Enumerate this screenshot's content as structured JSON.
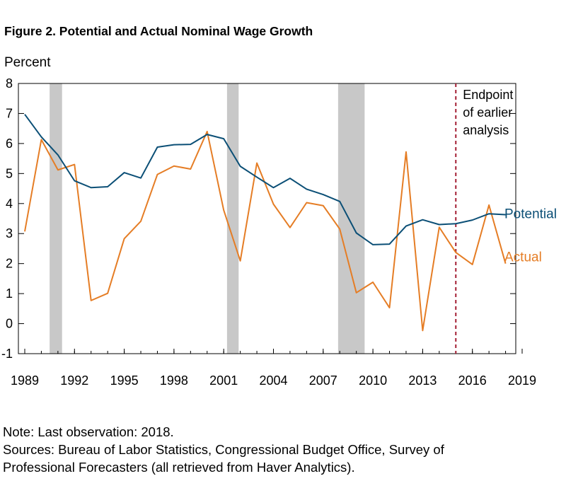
{
  "figure": {
    "title": "Figure 2.  Potential and Actual Nominal Wage Growth",
    "note": "Note: Last observation: 2018.",
    "sources_line1": "Sources: Bureau of Labor Statistics, Congressional Budget Office, Survey of",
    "sources_line2": "Professional Forecasters (all retrieved from Haver Analytics)."
  },
  "chart_data": {
    "type": "line",
    "ylabel": "Percent",
    "xlabel": "",
    "ylim": [
      -1,
      8
    ],
    "xlim": [
      1989,
      2019
    ],
    "yticks": [
      -1,
      0,
      1,
      2,
      3,
      4,
      5,
      6,
      7,
      8
    ],
    "xticks": [
      1989,
      1992,
      1995,
      1998,
      2001,
      2004,
      2007,
      2010,
      2013,
      2016,
      2019
    ],
    "x": [
      1989,
      1990,
      1991,
      1992,
      1993,
      1994,
      1995,
      1996,
      1997,
      1998,
      1999,
      2000,
      2001,
      2002,
      2003,
      2004,
      2005,
      2006,
      2007,
      2008,
      2009,
      2010,
      2011,
      2012,
      2013,
      2014,
      2015,
      2016,
      2017,
      2018
    ],
    "series": [
      {
        "name": "Potential",
        "color": "#0b4f76",
        "values": [
          6.97,
          6.22,
          5.62,
          4.76,
          4.53,
          4.56,
          5.03,
          4.85,
          5.88,
          5.96,
          5.97,
          6.3,
          6.16,
          5.24,
          4.88,
          4.53,
          4.84,
          4.48,
          4.3,
          4.07,
          3.02,
          2.63,
          2.65,
          3.25,
          3.46,
          3.3,
          3.33,
          3.45,
          3.66,
          3.63
        ]
      },
      {
        "name": "Actual",
        "color": "#e57d25",
        "values": [
          3.07,
          6.13,
          5.12,
          5.3,
          0.77,
          1.01,
          2.83,
          3.41,
          4.97,
          5.25,
          5.15,
          6.4,
          3.78,
          2.09,
          5.35,
          3.98,
          3.2,
          4.03,
          3.93,
          3.15,
          1.03,
          1.38,
          0.53,
          5.72,
          -0.23,
          3.21,
          2.37,
          1.97,
          3.95,
          2.0
        ]
      }
    ],
    "recessions": [
      [
        1990.5,
        1991.25
      ],
      [
        2001.2,
        2001.9
      ],
      [
        2007.9,
        2009.5
      ]
    ],
    "recession_color": "#c8c8c8",
    "marker_line": {
      "x": 2015,
      "label_lines": [
        "Endpoint",
        "of earlier",
        "analysis"
      ],
      "color": "#a31f34"
    },
    "legend_placement": "inline-right",
    "grid": false
  }
}
